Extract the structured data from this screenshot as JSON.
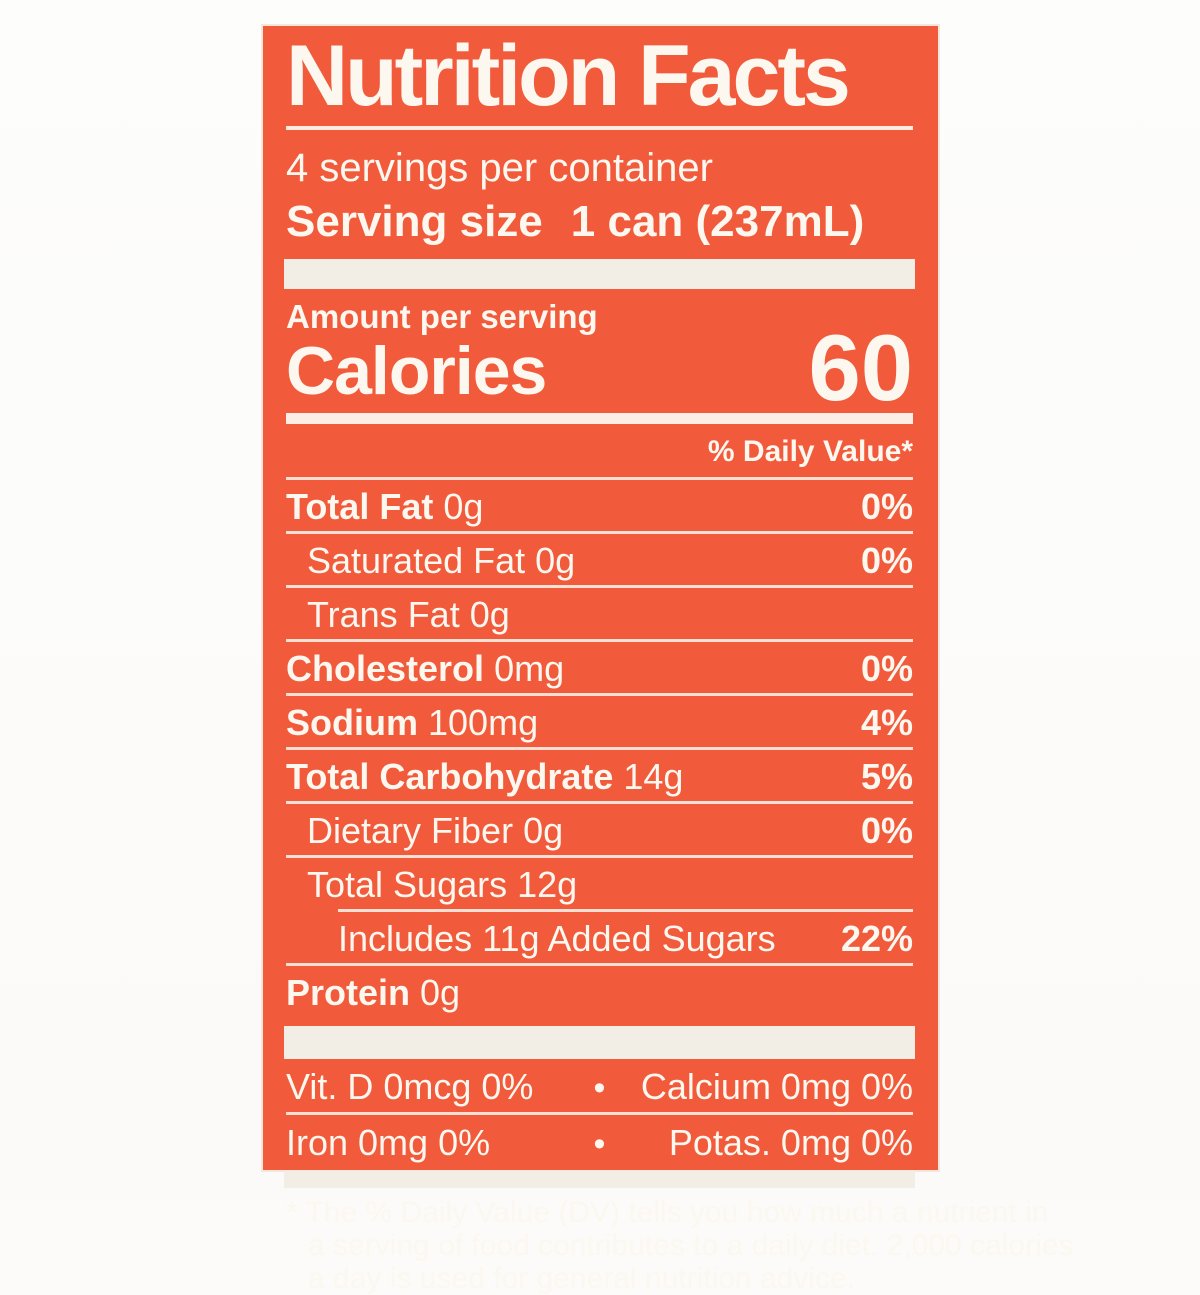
{
  "label": {
    "title": "Nutrition Facts",
    "servings_per_container": "4 servings per container",
    "serving_size_label": "Serving size",
    "serving_size_value": "1 can (237mL)",
    "amount_per_serving": "Amount per serving",
    "calories_label": "Calories",
    "calories_value": "60",
    "daily_value_header": "% Daily Value*",
    "rows": [
      {
        "name": "Total Fat",
        "amount": "0g",
        "dv": "0%"
      },
      {
        "name": "Saturated Fat",
        "amount": "0g",
        "dv": "0%"
      },
      {
        "name": "Trans Fat",
        "amount": "0g",
        "dv": ""
      },
      {
        "name": "Cholesterol",
        "amount": "0mg",
        "dv": "0%"
      },
      {
        "name": "Sodium",
        "amount": "100mg",
        "dv": "4%"
      },
      {
        "name": "Total Carbohydrate",
        "amount": "14g",
        "dv": "5%"
      },
      {
        "name": "Dietary Fiber",
        "amount": "0g",
        "dv": "0%"
      },
      {
        "name": "Total Sugars",
        "amount": "12g",
        "dv": ""
      },
      {
        "name": "Includes 11g Added Sugars",
        "amount": "",
        "dv": "22%"
      },
      {
        "name": "Protein",
        "amount": "0g",
        "dv": ""
      }
    ],
    "micronutrients": {
      "bullet": "•",
      "row1": {
        "left": "Vit. D 0mcg 0%",
        "right": "Calcium 0mg 0%"
      },
      "row2": {
        "left": "Iron 0mg 0%",
        "right": "Potas. 0mg 0%"
      }
    },
    "footnote_lines": [
      "* The % Daily Value (DV) tells you how much a nutrient in",
      "a serving of food contributes to a daily diet. 2,000 calories",
      "a day is used for general nutrition advice."
    ],
    "colors": {
      "label_background": "#f15b3c",
      "text": "#fcf7ef",
      "divider_bar": "#f3eee5",
      "page_background": "#fcfbf9"
    }
  }
}
